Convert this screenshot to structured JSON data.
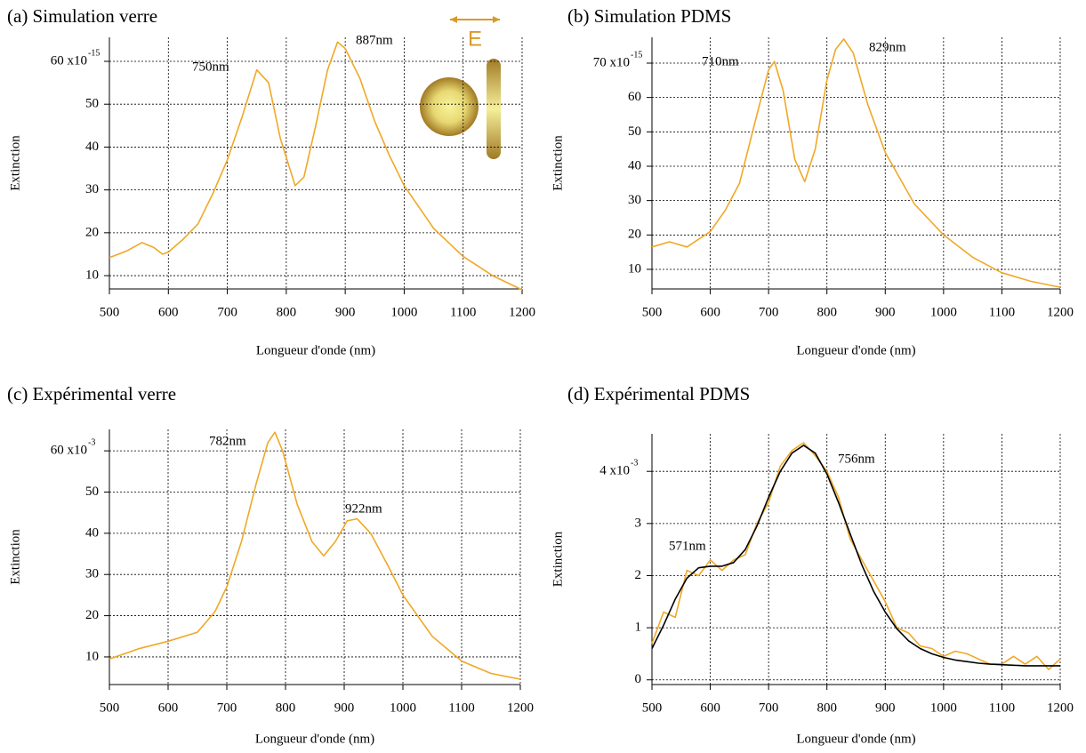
{
  "chart_data": [
    {
      "type": "line",
      "title": "(a) Simulation verre",
      "xlabel": "Longueur d'onde (nm)",
      "ylabel": "Extinction",
      "y_exponent": "-15",
      "annotations": [
        "750nm",
        "887nm"
      ],
      "inset_label": "E",
      "x": [
        500,
        530,
        555,
        575,
        590,
        600,
        625,
        650,
        675,
        700,
        725,
        750,
        770,
        790,
        815,
        830,
        850,
        870,
        887,
        900,
        925,
        950,
        975,
        1000,
        1050,
        1100,
        1150,
        1200
      ],
      "series": [
        {
          "color": "#f0a826",
          "values": [
            14.2,
            15.8,
            17.7,
            16.6,
            15.0,
            15.5,
            18.5,
            22,
            29,
            37,
            47,
            58,
            55,
            42,
            31,
            33,
            45,
            58,
            64.5,
            63,
            56,
            46,
            38,
            31,
            21,
            14.5,
            10,
            6.7
          ]
        }
      ],
      "xlim": [
        500,
        1200
      ],
      "xticks": [
        500,
        600,
        700,
        800,
        900,
        1000,
        1100,
        1200
      ],
      "ylim": [
        6.9,
        65.6
      ],
      "yticks": [
        10,
        20,
        30,
        40,
        50,
        {
          "value": 60,
          "label": "60 x10"
        }
      ],
      "grid": true
    },
    {
      "type": "line",
      "title": "(b) Simulation PDMS",
      "xlabel": "Longueur d'onde (nm)",
      "ylabel": "Extinction",
      "y_exponent": "-15",
      "annotations": [
        "710nm",
        "829nm"
      ],
      "x": [
        500,
        530,
        560,
        600,
        625,
        650,
        680,
        700,
        710,
        725,
        745,
        762,
        780,
        800,
        815,
        829,
        845,
        870,
        900,
        950,
        1000,
        1050,
        1100,
        1150,
        1200
      ],
      "series": [
        {
          "color": "#f0a826",
          "values": [
            16.5,
            18,
            16.5,
            21,
            27,
            35,
            55,
            68,
            70.5,
            62,
            42,
            35.5,
            45,
            65,
            74,
            77,
            73,
            58,
            44,
            29,
            20,
            13.5,
            9,
            6.5,
            4.8
          ]
        }
      ],
      "xlim": [
        500,
        1200
      ],
      "xticks": [
        500,
        600,
        700,
        800,
        900,
        1000,
        1100,
        1200
      ],
      "ylim": [
        4.3,
        77.5
      ],
      "yticks": [
        10,
        20,
        30,
        40,
        50,
        60,
        {
          "value": 70,
          "label": "70 x10"
        }
      ],
      "grid": true
    },
    {
      "type": "line",
      "title": "(c) Expérimental verre",
      "xlabel": "Longueur d'onde (nm)",
      "ylabel": "Extinction",
      "y_exponent": "-3",
      "annotations": [
        "782nm",
        "922nm"
      ],
      "x": [
        500,
        550,
        600,
        650,
        680,
        700,
        725,
        750,
        770,
        782,
        795,
        820,
        845,
        865,
        885,
        905,
        922,
        945,
        975,
        1000,
        1050,
        1100,
        1150,
        1200
      ],
      "series": [
        {
          "color": "#f0a826",
          "values": [
            9.5,
            12,
            13.8,
            16,
            21,
            27,
            38,
            52,
            62,
            64.5,
            60,
            47,
            38,
            34.5,
            38,
            43,
            43.5,
            40,
            32,
            25,
            15,
            9,
            6,
            4.6
          ]
        }
      ],
      "xlim": [
        500,
        1200
      ],
      "xticks": [
        500,
        600,
        700,
        800,
        900,
        1000,
        1100,
        1200
      ],
      "ylim": [
        3.3,
        65.2
      ],
      "yticks": [
        10,
        20,
        30,
        40,
        50,
        {
          "value": 60,
          "label": "60 x10"
        }
      ],
      "grid": true
    },
    {
      "type": "line",
      "title": "(d) Expérimental PDMS",
      "xlabel": "Longueur d'onde (nm)",
      "ylabel": "Extinction",
      "y_exponent": "-3",
      "annotations": [
        "571nm",
        "756nm"
      ],
      "x": [
        500,
        520,
        540,
        560,
        580,
        600,
        620,
        640,
        660,
        680,
        700,
        720,
        740,
        760,
        780,
        800,
        820,
        840,
        860,
        880,
        900,
        920,
        940,
        960,
        980,
        1000,
        1020,
        1040,
        1060,
        1080,
        1100,
        1120,
        1140,
        1160,
        1180,
        1200
      ],
      "series": [
        {
          "color": "#f0a826",
          "values": [
            0.7,
            1.3,
            1.2,
            2.1,
            2.0,
            2.3,
            2.1,
            2.3,
            2.4,
            3.0,
            3.4,
            4.1,
            4.4,
            4.55,
            4.3,
            4.0,
            3.5,
            2.7,
            2.3,
            1.9,
            1.5,
            1.0,
            0.9,
            0.65,
            0.6,
            0.45,
            0.55,
            0.5,
            0.4,
            0.3,
            0.3,
            0.45,
            0.3,
            0.45,
            0.2,
            0.4
          ]
        },
        {
          "color": "#000000",
          "values": [
            0.6,
            1.05,
            1.55,
            1.95,
            2.15,
            2.18,
            2.18,
            2.25,
            2.5,
            2.95,
            3.5,
            4.0,
            4.35,
            4.5,
            4.35,
            3.95,
            3.4,
            2.8,
            2.2,
            1.7,
            1.3,
            0.98,
            0.75,
            0.6,
            0.5,
            0.43,
            0.38,
            0.35,
            0.32,
            0.3,
            0.29,
            0.28,
            0.27,
            0.27,
            0.27,
            0.27
          ]
        }
      ],
      "xlim": [
        500,
        1200
      ],
      "xticks": [
        500,
        600,
        700,
        800,
        900,
        1000,
        1100,
        1200
      ],
      "ylim": [
        -0.09,
        4.72
      ],
      "yticks": [
        0,
        1,
        2,
        3,
        {
          "value": 4,
          "label": "4 x10"
        }
      ],
      "grid": true
    }
  ]
}
